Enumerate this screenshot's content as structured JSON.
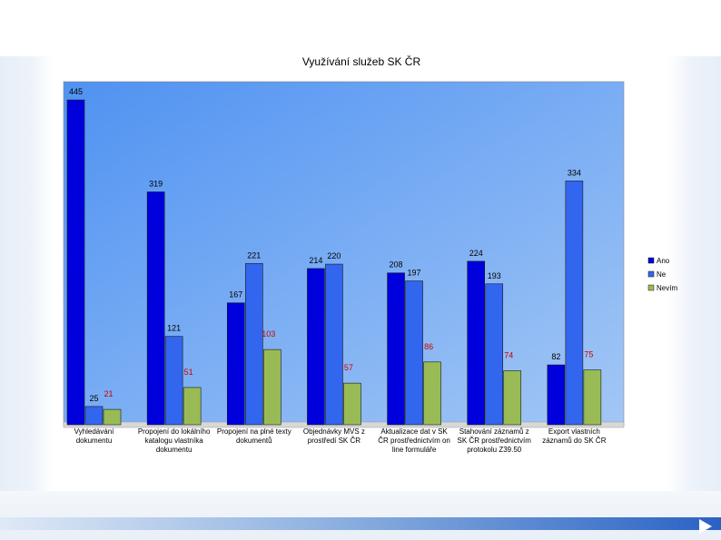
{
  "chart_data": {
    "type": "bar",
    "title": "Využívání služeb SK ČR",
    "categories": [
      [
        "Vyhledávání",
        "dokumentu"
      ],
      [
        "Propojení do lokálního",
        "katalogu vlastníka",
        "dokumentu"
      ],
      [
        "Propojení na plné texty",
        "dokumentů"
      ],
      [
        "Objednávky MVS z",
        "prostředí SK ČR"
      ],
      [
        "Aktualizace dat v SK",
        "ČR prostřednictvím on",
        "line formuláře"
      ],
      [
        "Stahování záznamů z",
        "SK ČR prostřednictvím",
        "protokolu Z39.50"
      ],
      [
        "Export vlastních",
        "záznamů do SK ČR"
      ]
    ],
    "series": [
      {
        "name": "Ano",
        "color": "#0000dd",
        "values": [
          445,
          319,
          167,
          214,
          208,
          224,
          82
        ]
      },
      {
        "name": "Ne",
        "color": "#3366ee",
        "values": [
          25,
          121,
          221,
          220,
          197,
          193,
          334
        ]
      },
      {
        "name": "Nevím",
        "color": "#99bb55",
        "values": [
          21,
          51,
          103,
          57,
          86,
          74,
          75
        ]
      }
    ],
    "ylim": [
      0,
      470
    ],
    "grid": false,
    "legend": "right",
    "plot_background": [
      "#4f92f2",
      "#a3c7f5"
    ]
  }
}
